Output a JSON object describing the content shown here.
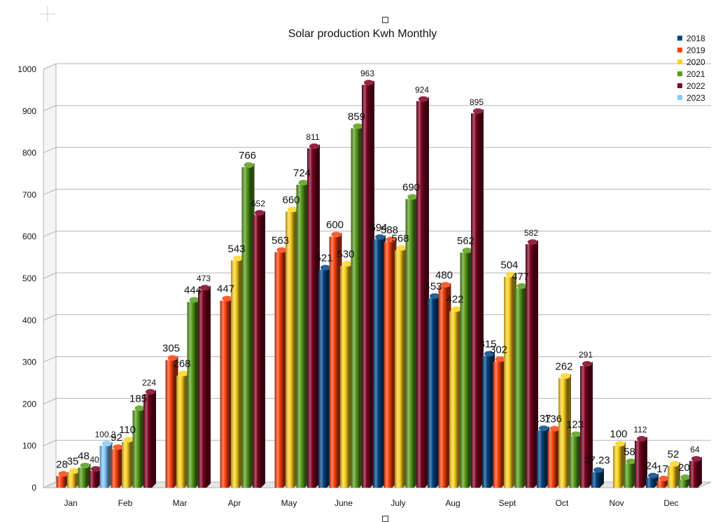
{
  "chart_data": {
    "type": "bar",
    "title": "Solar production Kwh Monthly",
    "categories": [
      "Jan",
      "Feb",
      "Mar",
      "Apr",
      "May",
      "June",
      "July",
      "Aug",
      "Sept",
      "Oct",
      "Nov",
      "Dec"
    ],
    "series": [
      {
        "name": "2018",
        "color": "#004586",
        "values": [
          null,
          null,
          null,
          null,
          null,
          521,
          594,
          453,
          315,
          137,
          37.23,
          24
        ]
      },
      {
        "name": "2019",
        "color": "#ff420e",
        "values": [
          28,
          92,
          305,
          447,
          563,
          600,
          588,
          480,
          302,
          136,
          null,
          17
        ]
      },
      {
        "name": "2020",
        "color": "#ffd320",
        "values": [
          35,
          110,
          268,
          543,
          660,
          530,
          568,
          422,
          504,
          262,
          100,
          52
        ]
      },
      {
        "name": "2021",
        "color": "#579d1c",
        "values": [
          48,
          185,
          444,
          766,
          724,
          859,
          690,
          562,
          477,
          123,
          58,
          20
        ]
      },
      {
        "name": "2022",
        "color": "#7e0021",
        "values": [
          40,
          224,
          473,
          652,
          811,
          963,
          924,
          895,
          582,
          291,
          112,
          64
        ]
      },
      {
        "name": "2023",
        "color": "#83caff",
        "values": [
          100.3,
          null,
          null,
          null,
          null,
          null,
          null,
          null,
          null,
          null,
          null,
          null
        ]
      }
    ],
    "y_ticks": [
      "0",
      "100",
      "200",
      "300",
      "400",
      "500",
      "600",
      "700",
      "800",
      "900",
      "1000"
    ],
    "ylim": [
      0,
      1000
    ],
    "grid": true,
    "legend": "top-right",
    "style": "3d-cylinder-bars"
  }
}
